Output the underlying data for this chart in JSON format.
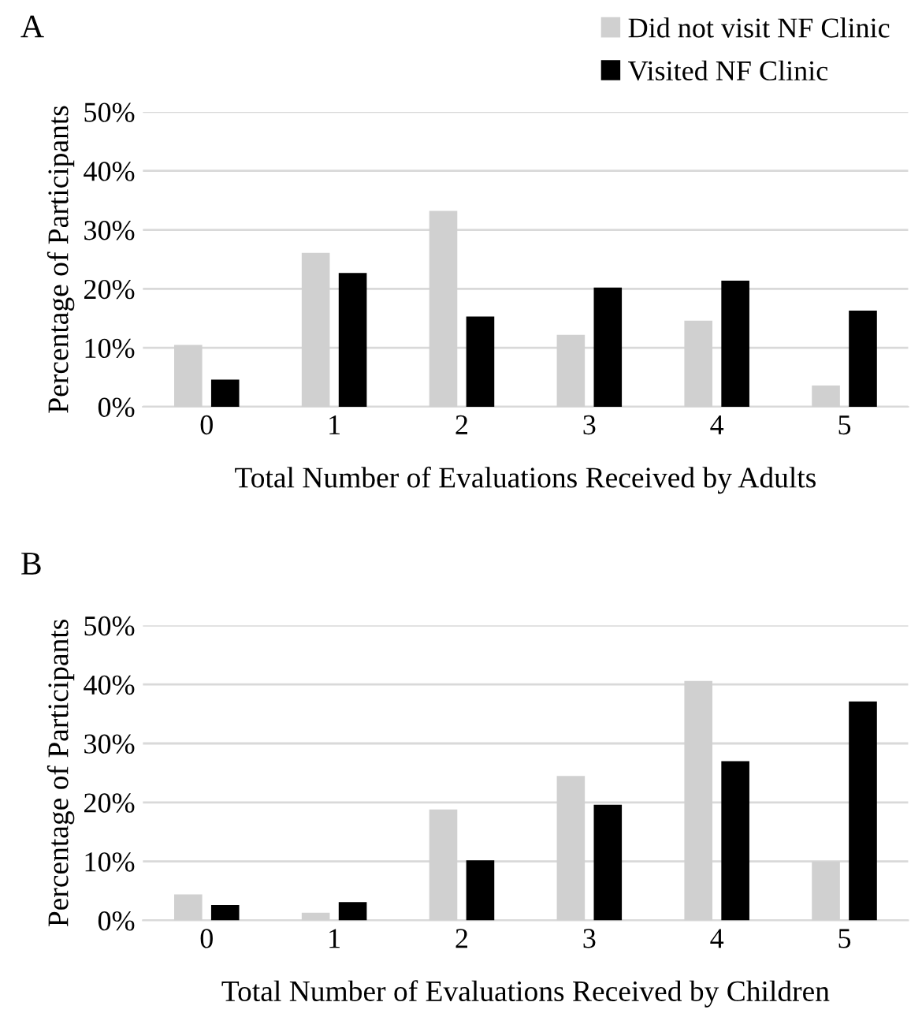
{
  "chart_data": [
    {
      "type": "bar",
      "title": "A",
      "xlabel": "Total Number of Evaluations Received by Adults",
      "ylabel": "Percentage of Participants",
      "categories": [
        "0",
        "1",
        "2",
        "3",
        "4",
        "5"
      ],
      "series": [
        {
          "name": "Did not visit NF Clinic",
          "color": "#d0d0d0",
          "values": [
            10.5,
            26.1,
            33.2,
            12.2,
            14.6,
            3.6
          ]
        },
        {
          "name": "Visited NF Clinic",
          "color": "#000000",
          "values": [
            4.6,
            22.7,
            15.3,
            20.2,
            21.4,
            16.3
          ]
        }
      ],
      "ylim": [
        0,
        50
      ],
      "yticks": [
        {
          "value": 0,
          "label": "0%"
        },
        {
          "value": 10,
          "label": "10%"
        },
        {
          "value": 20,
          "label": "20%"
        },
        {
          "value": 30,
          "label": "30%"
        },
        {
          "value": 40,
          "label": "40%"
        },
        {
          "value": 50,
          "label": "50%"
        }
      ],
      "grid": "y",
      "legend": "top right"
    },
    {
      "type": "bar",
      "title": "B",
      "xlabel": "Total Number of Evaluations Received by Children",
      "ylabel": "Percentage of Participants",
      "categories": [
        "0",
        "1",
        "2",
        "3",
        "4",
        "5"
      ],
      "series": [
        {
          "color": "#d0d0d0",
          "values": [
            4.4,
            1.3,
            18.8,
            24.5,
            40.6,
            10.0
          ]
        },
        {
          "color": "#000000",
          "values": [
            2.6,
            3.1,
            10.2,
            19.6,
            27.0,
            37.1
          ]
        }
      ],
      "ylim": [
        0,
        50
      ],
      "yticks": [
        {
          "value": 0,
          "label": "0%"
        },
        {
          "value": 10,
          "label": "10%"
        },
        {
          "value": 20,
          "label": "20%"
        },
        {
          "value": 30,
          "label": "30%"
        },
        {
          "value": 40,
          "label": "40%"
        },
        {
          "value": 50,
          "label": "50%"
        }
      ],
      "grid": "y"
    }
  ]
}
